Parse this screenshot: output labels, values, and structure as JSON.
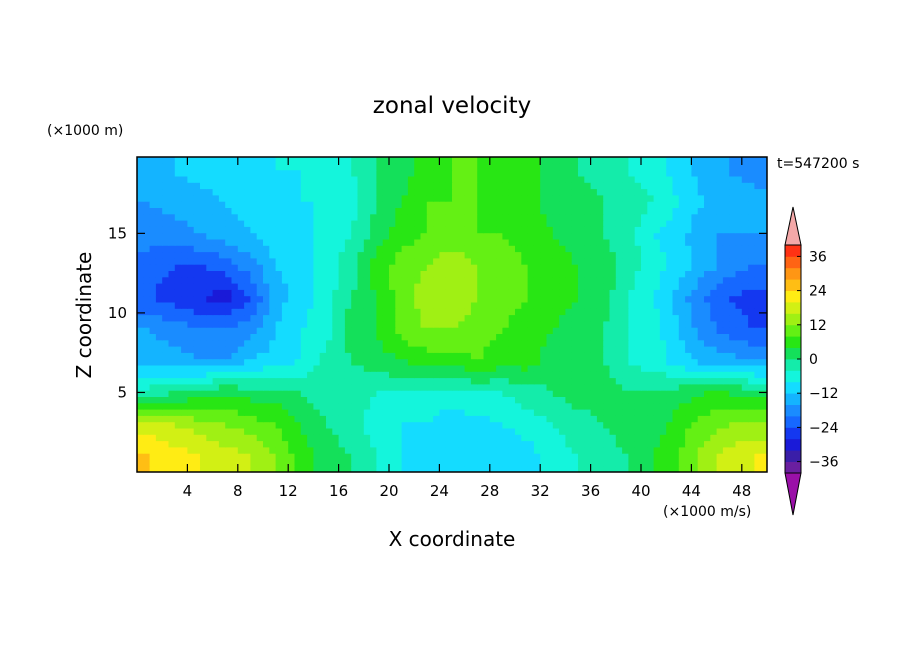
{
  "chart_data": {
    "type": "heatmap",
    "title": "zonal velocity",
    "xlabel": "X coordinate",
    "ylabel": "Z coordinate",
    "x_unit_label": "(×1000 m/s)",
    "y_unit_label": "(×1000 m)",
    "time_label": "t=547200 s",
    "xlim": [
      0,
      50
    ],
    "ylim": [
      0,
      19.8
    ],
    "x_ticks": [
      4,
      8,
      12,
      16,
      20,
      24,
      28,
      32,
      36,
      40,
      44,
      48
    ],
    "y_ticks": [
      5,
      10,
      15
    ],
    "colorbar": {
      "tick_labels": [
        "36",
        "24",
        "12",
        "0",
        "−12",
        "−24",
        "−36"
      ],
      "tick_values": [
        36,
        24,
        12,
        0,
        -12,
        -24,
        -36
      ],
      "levels": [
        -40,
        -36,
        -32,
        -28,
        -24,
        -20,
        -16,
        -12,
        -8,
        -4,
        0,
        4,
        8,
        12,
        16,
        20,
        24,
        28,
        32,
        36,
        40
      ],
      "colors": [
        "#6a1fa0",
        "#3a1ea8",
        "#1a1ad8",
        "#1438f0",
        "#1668ff",
        "#1a8cff",
        "#14b4ff",
        "#14dcff",
        "#14f5dc",
        "#14ecaa",
        "#14e05a",
        "#28e614",
        "#64f014",
        "#a0f014",
        "#d2f014",
        "#ffec14",
        "#ffbe14",
        "#ff9614",
        "#ff6414",
        "#ff3214"
      ],
      "over_color": "#f4a8a8",
      "under_color": "#9a10a8"
    },
    "x": [
      1,
      3,
      5,
      7,
      9,
      11,
      13,
      15,
      17,
      19,
      21,
      23,
      25,
      27,
      29,
      31,
      33,
      35,
      37,
      39,
      41,
      43,
      45,
      47,
      49
    ],
    "y": [
      1,
      3,
      5,
      7,
      9,
      11,
      13,
      15,
      17,
      19
    ],
    "z": [
      [
        24,
        22,
        20,
        18,
        16,
        12,
        6,
        2,
        0,
        -4,
        -8,
        -10,
        -12,
        -12,
        -12,
        -10,
        -6,
        -4,
        -2,
        0,
        4,
        8,
        14,
        18,
        20
      ],
      [
        18,
        16,
        14,
        12,
        10,
        8,
        4,
        0,
        -2,
        -6,
        -8,
        -8,
        -10,
        -10,
        -8,
        -6,
        -4,
        -2,
        0,
        2,
        2,
        6,
        10,
        12,
        12
      ],
      [
        -2,
        0,
        2,
        4,
        2,
        2,
        0,
        -2,
        -2,
        -4,
        -4,
        -6,
        -6,
        -4,
        -4,
        -2,
        0,
        2,
        2,
        0,
        0,
        2,
        4,
        4,
        2
      ],
      [
        -14,
        -14,
        -16,
        -16,
        -12,
        -10,
        -8,
        -2,
        0,
        2,
        4,
        6,
        6,
        8,
        6,
        6,
        2,
        2,
        0,
        -4,
        -6,
        -10,
        -14,
        -14,
        -16
      ],
      [
        -16,
        -18,
        -20,
        -20,
        -18,
        -12,
        -8,
        -6,
        2,
        4,
        10,
        12,
        12,
        10,
        8,
        6,
        4,
        2,
        0,
        -4,
        -6,
        -12,
        -18,
        -22,
        -24
      ],
      [
        -24,
        -26,
        -28,
        -30,
        -24,
        -14,
        -10,
        -6,
        0,
        4,
        10,
        14,
        16,
        12,
        10,
        8,
        6,
        4,
        2,
        -4,
        -8,
        -14,
        -20,
        -24,
        -26
      ],
      [
        -22,
        -24,
        -24,
        -22,
        -18,
        -12,
        -10,
        -6,
        -2,
        6,
        10,
        12,
        16,
        12,
        10,
        8,
        6,
        4,
        2,
        -2,
        -6,
        -10,
        -14,
        -18,
        -20
      ],
      [
        -18,
        -18,
        -16,
        -14,
        -12,
        -10,
        -10,
        -6,
        -4,
        2,
        6,
        8,
        8,
        8,
        8,
        6,
        4,
        2,
        0,
        -2,
        -8,
        -10,
        -16,
        -16,
        -16
      ],
      [
        -16,
        -14,
        -14,
        -12,
        -10,
        -10,
        -8,
        -8,
        -6,
        0,
        4,
        8,
        8,
        8,
        6,
        6,
        2,
        2,
        0,
        -2,
        -4,
        -8,
        -12,
        -14,
        -14
      ],
      [
        -14,
        -12,
        -10,
        -10,
        -10,
        -8,
        -8,
        -6,
        -4,
        0,
        2,
        6,
        8,
        8,
        6,
        6,
        2,
        0,
        -2,
        -4,
        -6,
        -10,
        -14,
        -16,
        -18
      ]
    ]
  }
}
